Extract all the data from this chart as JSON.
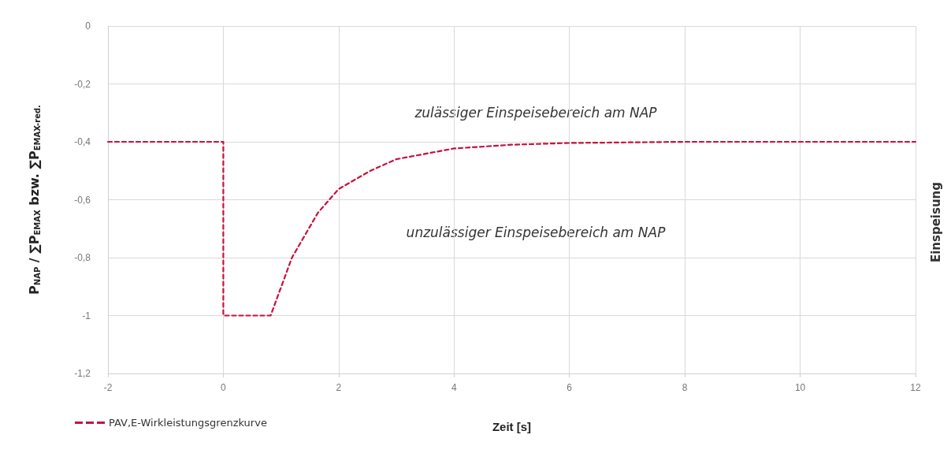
{
  "chart_data": {
    "type": "line",
    "xlabel": "Zeit [s]",
    "ylabel": "P$_{NAP}$ / ∑P$_{EMAX}$ bzw. ∑P$_{EMAX-red.}$",
    "series": [
      {
        "name": "PAV,E-Wirkleistungsgrenzkurve",
        "color": "#c8103e",
        "x": [
          -2,
          0,
          0,
          0.82,
          1.19,
          1.64,
          2.0,
          2.55,
          3.0,
          4.0,
          5.0,
          6.0,
          8.0,
          10.0,
          12.0
        ],
        "values": [
          -0.4,
          -0.4,
          -1,
          -1,
          -0.8,
          -0.645,
          -0.563,
          -0.5,
          -0.46,
          -0.423,
          -0.41,
          -0.404,
          -0.4,
          -0.4,
          -0.4
        ]
      }
    ],
    "xlim": [
      -2,
      12
    ],
    "xticks": [
      -2,
      0,
      2,
      4,
      6,
      8,
      10,
      12
    ],
    "ylim": [
      -1.2,
      0
    ],
    "yticks": [
      {
        "value": 0,
        "label": "0"
      },
      {
        "value": -0.2,
        "label": "-0,2"
      },
      {
        "value": -0.4,
        "label": "-0,4"
      },
      {
        "value": -0.6,
        "label": "-0,6"
      },
      {
        "value": -0.8,
        "label": "-0,8"
      },
      {
        "value": -1,
        "label": "-1"
      },
      {
        "value": -1.2,
        "label": "-1,2"
      }
    ],
    "annotations": [
      "zulässiger Einspeisebereich am NAP",
      "unzulässiger Einspeisebereich am NAP",
      "Einspeisung"
    ],
    "grid": true,
    "legend": "bottom left",
    "marker": "none",
    "line_style": "dashed"
  }
}
